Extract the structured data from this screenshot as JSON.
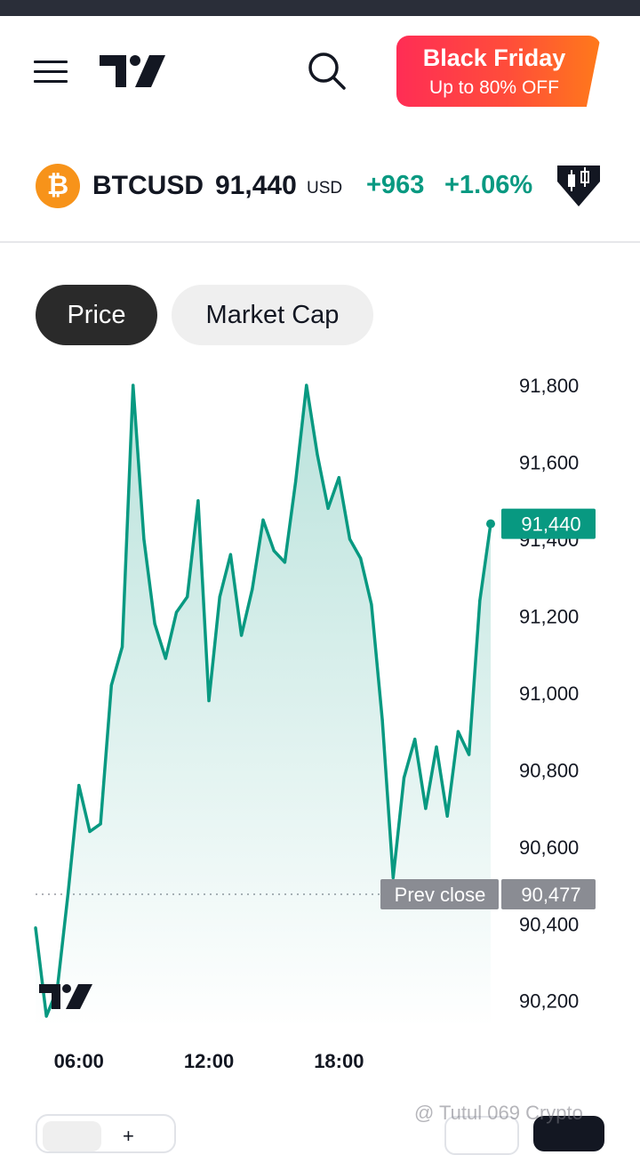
{
  "header": {
    "menu_icon": "hamburger-menu-icon",
    "logo_icon": "tradingview-logo-icon",
    "search_icon": "search-icon",
    "promo": {
      "title": "Black Friday",
      "subtitle": "Up to 80% OFF"
    }
  },
  "ticker": {
    "icon": "bitcoin-icon",
    "icon_glyph": "₿",
    "symbol": "BTCUSD",
    "price": "91,440",
    "currency": "USD",
    "change": "+963",
    "change_pct": "+1.06%",
    "alert_icon": "candle-alert-icon"
  },
  "tabs": [
    {
      "label": "Price",
      "active": true
    },
    {
      "label": "Market Cap",
      "active": false
    }
  ],
  "chart_data": {
    "type": "area",
    "series": [
      {
        "name": "",
        "x": [
          "04:00",
          "04:30",
          "05:00",
          "05:30",
          "06:00",
          "06:30",
          "07:00",
          "07:30",
          "08:00",
          "08:30",
          "09:00",
          "09:30",
          "10:00",
          "10:30",
          "11:00",
          "11:30",
          "12:00",
          "12:30",
          "13:00",
          "13:30",
          "14:00",
          "14:30",
          "15:00",
          "15:30",
          "16:00",
          "16:30",
          "17:00",
          "17:30",
          "18:00",
          "18:30",
          "19:00",
          "19:30",
          "20:00",
          "20:30",
          "21:00",
          "21:30",
          "22:00",
          "22:30",
          "23:00",
          "23:30",
          "00:00",
          "00:30",
          "01:00"
        ],
        "values": [
          90390,
          90160,
          90230,
          90480,
          90760,
          90640,
          90660,
          91020,
          91120,
          91800,
          91400,
          91180,
          91090,
          91210,
          91250,
          91500,
          90980,
          91250,
          91360,
          91150,
          91270,
          91450,
          91370,
          91340,
          91550,
          91800,
          91620,
          91480,
          91560,
          91400,
          91350,
          91230,
          90930,
          90520,
          90780,
          90880,
          90700,
          90860,
          90680,
          90900,
          90840,
          91240,
          91440
        ]
      }
    ],
    "y_ticks": [
      "91,800",
      "91,600",
      "91,400",
      "91,200",
      "91,000",
      "90,800",
      "90,600",
      "90,400",
      "90,200"
    ],
    "x_ticks": [
      "06:00",
      "12:00",
      "18:00"
    ],
    "ylim": [
      90130,
      91830
    ],
    "last_price": 91440,
    "last_price_label": "91,440",
    "prev_close": 90477,
    "prev_close_label": "90,477",
    "prev_close_text": "Prev close",
    "line_color": "#089981"
  },
  "chart_logo_icon": "tradingview-watermark-icon",
  "toolbar": {
    "chart_type_icon": "line-chart-icon",
    "add_indicator_icon": "add-icon",
    "camera_icon": "camera-icon",
    "fullscreen_icon": "fullscreen-icon"
  },
  "watermark": "@ Tutul 069 Crypto"
}
